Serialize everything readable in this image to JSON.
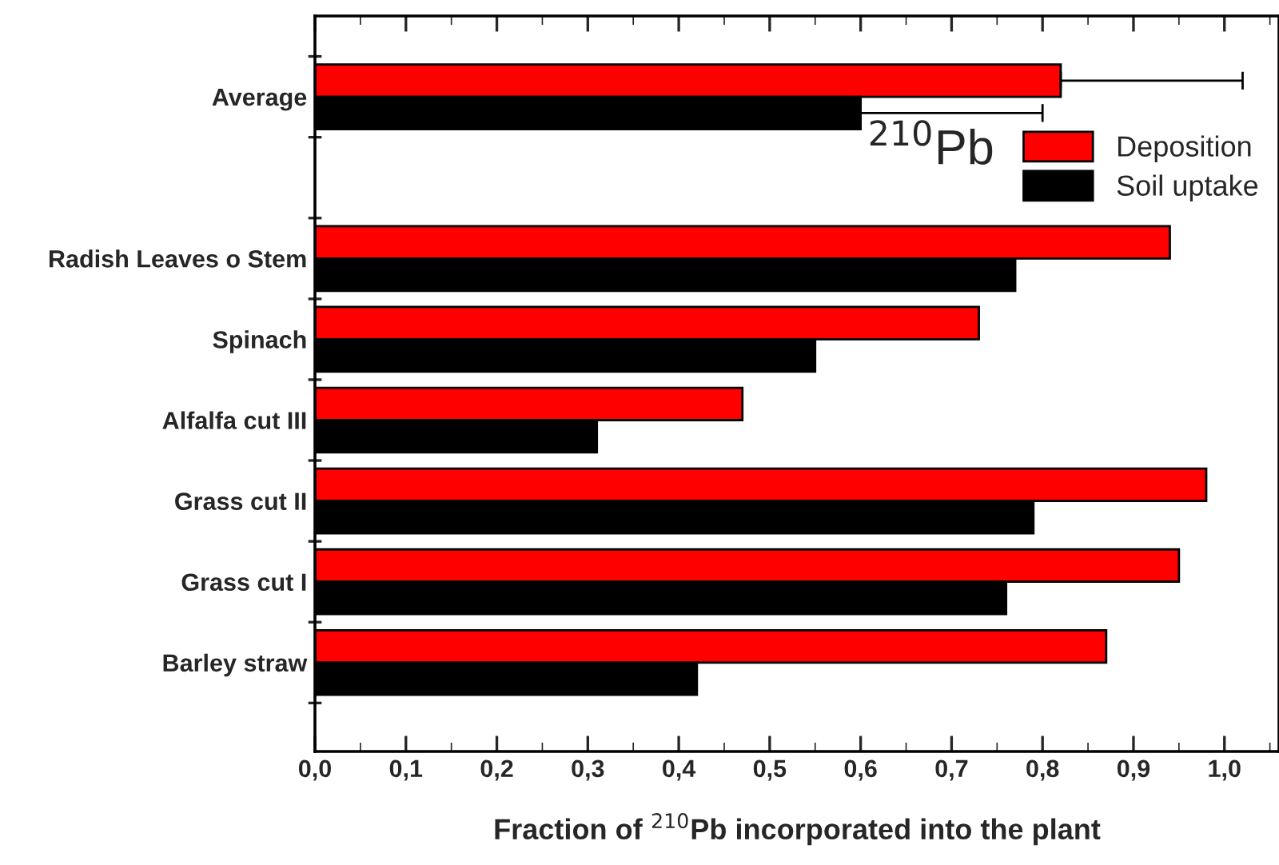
{
  "chart_data": {
    "type": "bar",
    "orientation": "horizontal",
    "xlabel": "Fraction of $^{210}$Pb incorporated into the plant",
    "categories": [
      "Average",
      null,
      "Radish Leaves o Stem",
      "Spinach",
      "Alfalfa cut III",
      "Grass cut II",
      "Grass cut I",
      "Barley straw"
    ],
    "series": [
      {
        "name": "Deposition",
        "color": "#ff0000",
        "values": [
          0.82,
          null,
          0.94,
          0.73,
          0.47,
          0.98,
          0.95,
          0.87
        ],
        "errors": [
          [
            0.82,
            1.02
          ],
          null,
          null,
          null,
          null,
          null,
          null,
          null
        ]
      },
      {
        "name": "Soil uptake",
        "color": "#000000",
        "values": [
          0.6,
          null,
          0.77,
          0.55,
          0.31,
          0.79,
          0.76,
          0.42
        ],
        "errors": [
          [
            0.6,
            0.8
          ],
          null,
          null,
          null,
          null,
          null,
          null,
          null
        ]
      }
    ],
    "annotations": [
      "$^{210}$Pb"
    ],
    "xlim": [
      0,
      1.06
    ],
    "xticks": [
      {
        "value": 0,
        "label": "0,0"
      },
      {
        "value": 0.1,
        "label": "0,1"
      },
      {
        "value": 0.2,
        "label": "0,2"
      },
      {
        "value": 0.3,
        "label": "0,3"
      },
      {
        "value": 0.4,
        "label": "0,4"
      },
      {
        "value": 0.5,
        "label": "0,5"
      },
      {
        "value": 0.6,
        "label": "0,6"
      },
      {
        "value": 0.7,
        "label": "0,7"
      },
      {
        "value": 0.8,
        "label": "0,8"
      },
      {
        "value": 0.9,
        "label": "0,9"
      },
      {
        "value": 1.0,
        "label": "1,0"
      }
    ],
    "legend": "top right",
    "grid": false
  }
}
